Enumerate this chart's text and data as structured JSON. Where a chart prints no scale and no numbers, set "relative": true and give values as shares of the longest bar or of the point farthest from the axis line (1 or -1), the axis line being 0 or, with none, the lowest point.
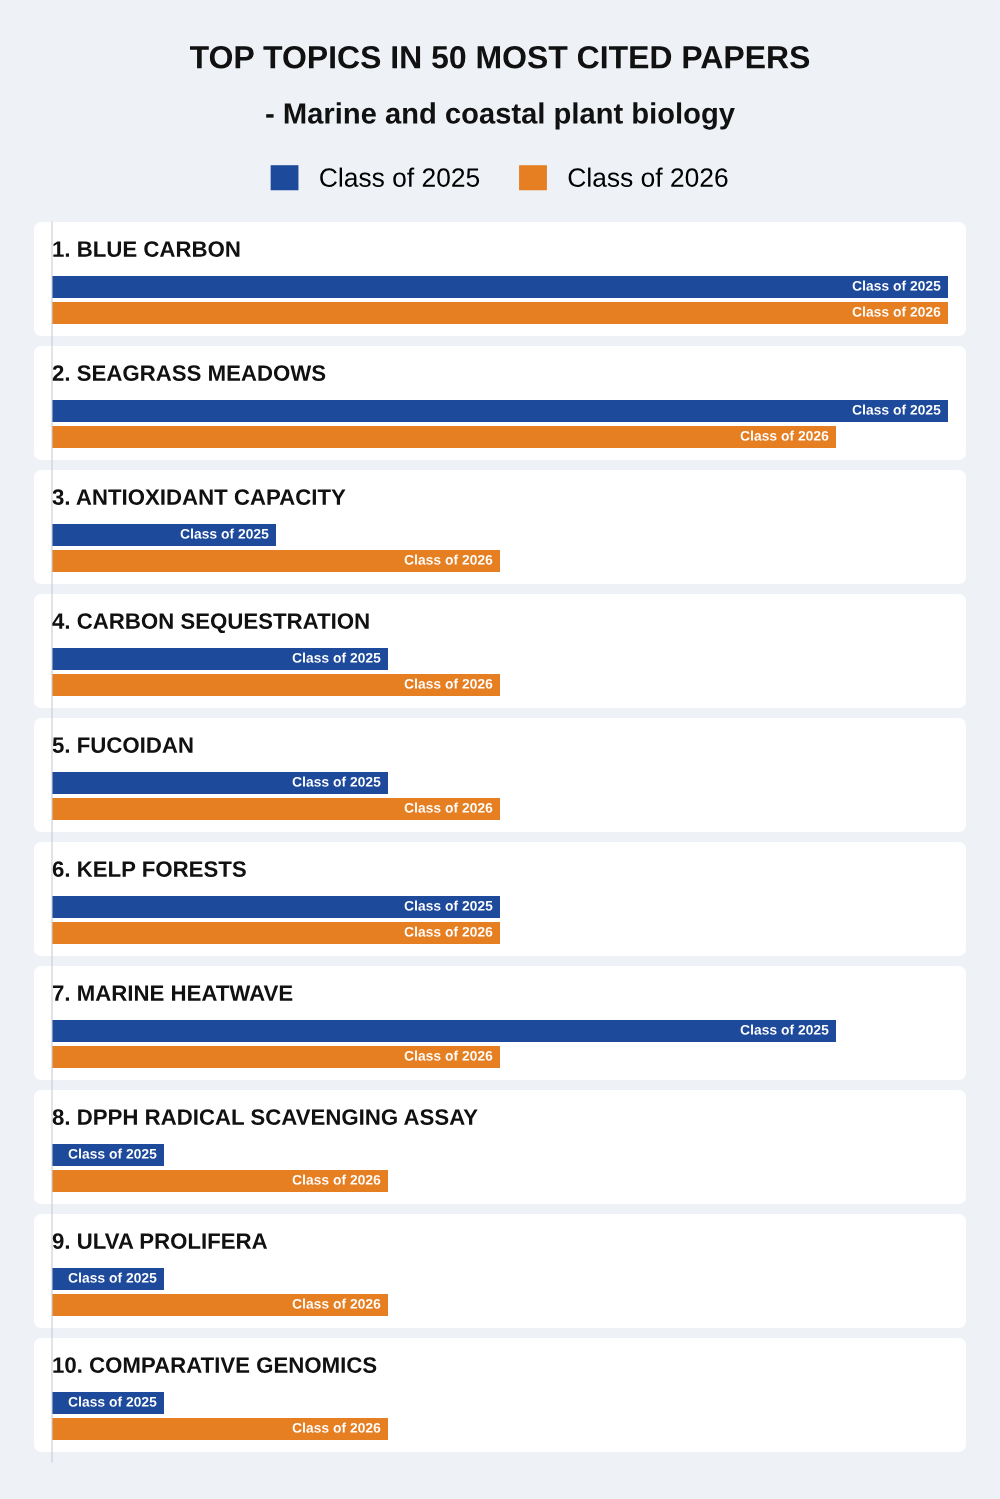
{
  "chart_data": {
    "type": "bar",
    "orientation": "horizontal",
    "relative": true,
    "legend": "top",
    "title": "TOP TOPICS IN 50 MOST CITED PAPERS",
    "subtitle": "- Marine and coastal plant biology",
    "categories": [
      "1. BLUE CARBON",
      "2. SEAGRASS MEADOWS",
      "3. ANTIOXIDANT CAPACITY",
      "4. CARBON SEQUESTRATION",
      "5. FUCOIDAN",
      "6. KELP FORESTS",
      "7. MARINE HEATWAVE",
      "8. DPPH RADICAL SCAVENGING ASSAY",
      "9. ULVA PROLIFERA",
      "10. COMPARATIVE GENOMICS"
    ],
    "series": [
      {
        "name": "Class of 2025",
        "color": "#1d4a9b",
        "values": [
          1,
          1,
          0.25,
          0.375,
          0.375,
          0.5,
          0.875,
          0.125,
          0.125,
          0.125
        ]
      },
      {
        "name": "Class of 2026",
        "color": "#e67e22",
        "values": [
          1,
          0.875,
          0.5,
          0.5,
          0.5,
          0.5,
          0.5,
          0.375,
          0.375,
          0.375
        ]
      }
    ]
  }
}
